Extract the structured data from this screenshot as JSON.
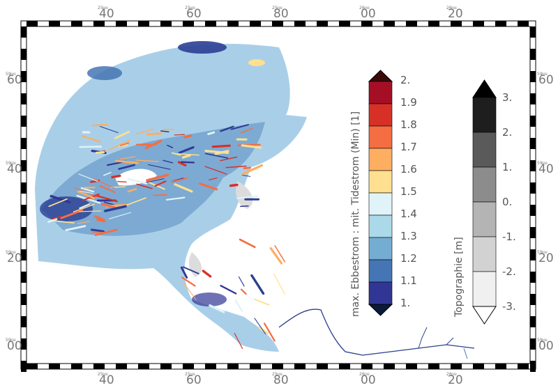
{
  "axes": {
    "top_ticks": [
      {
        "major": "40",
        "minor": "25",
        "sub": "008"
      },
      {
        "major": "60",
        "minor": "25",
        "sub": "008"
      },
      {
        "major": "80",
        "minor": "25",
        "sub": "008"
      },
      {
        "major": "00",
        "minor": "26",
        "sub": "008"
      },
      {
        "major": "20",
        "minor": "26",
        "sub": "008"
      }
    ],
    "side_ticks": [
      {
        "major": "60",
        "minor": "59",
        "sub": "008"
      },
      {
        "major": "40",
        "minor": "59",
        "sub": "008"
      },
      {
        "major": "20",
        "minor": "59",
        "sub": "008"
      },
      {
        "major": "00",
        "minor": "59",
        "sub": "008"
      }
    ]
  },
  "colorbar_current": {
    "title": "max. Ebbestrom : mit. Tidestrom (Min) [1]",
    "labels": [
      "2.",
      "1.9",
      "1.8",
      "1.7",
      "1.6",
      "1.5",
      "1.4",
      "1.3",
      "1.2",
      "1.1",
      "1."
    ],
    "colors": [
      "#a50f26",
      "#d73027",
      "#f46d43",
      "#fdae61",
      "#fee090",
      "#e0f3f8",
      "#abd9e9",
      "#74add1",
      "#4575b4",
      "#313695"
    ],
    "over_color": "#3b0a0a",
    "under_color": "#0a1a3a"
  },
  "colorbar_topo": {
    "title": "Topographie [m]",
    "labels": [
      "3.",
      "2.",
      "1.",
      "0.",
      "-1.",
      "-2.",
      "-3."
    ],
    "colors": [
      "#1e1e1e",
      "#5a5a5a",
      "#8c8c8c",
      "#b4b4b4",
      "#d2d2d2",
      "#f0f0f0"
    ],
    "over_color": "#000000",
    "under_color": "#ffffff"
  },
  "map": {
    "sea_color": "#a9cfe8",
    "sea_dark": "#6f9ecb",
    "deep_color": "#2b3f94",
    "land_color": "#dcdcdc",
    "channel_color": "#2c3f8c"
  }
}
